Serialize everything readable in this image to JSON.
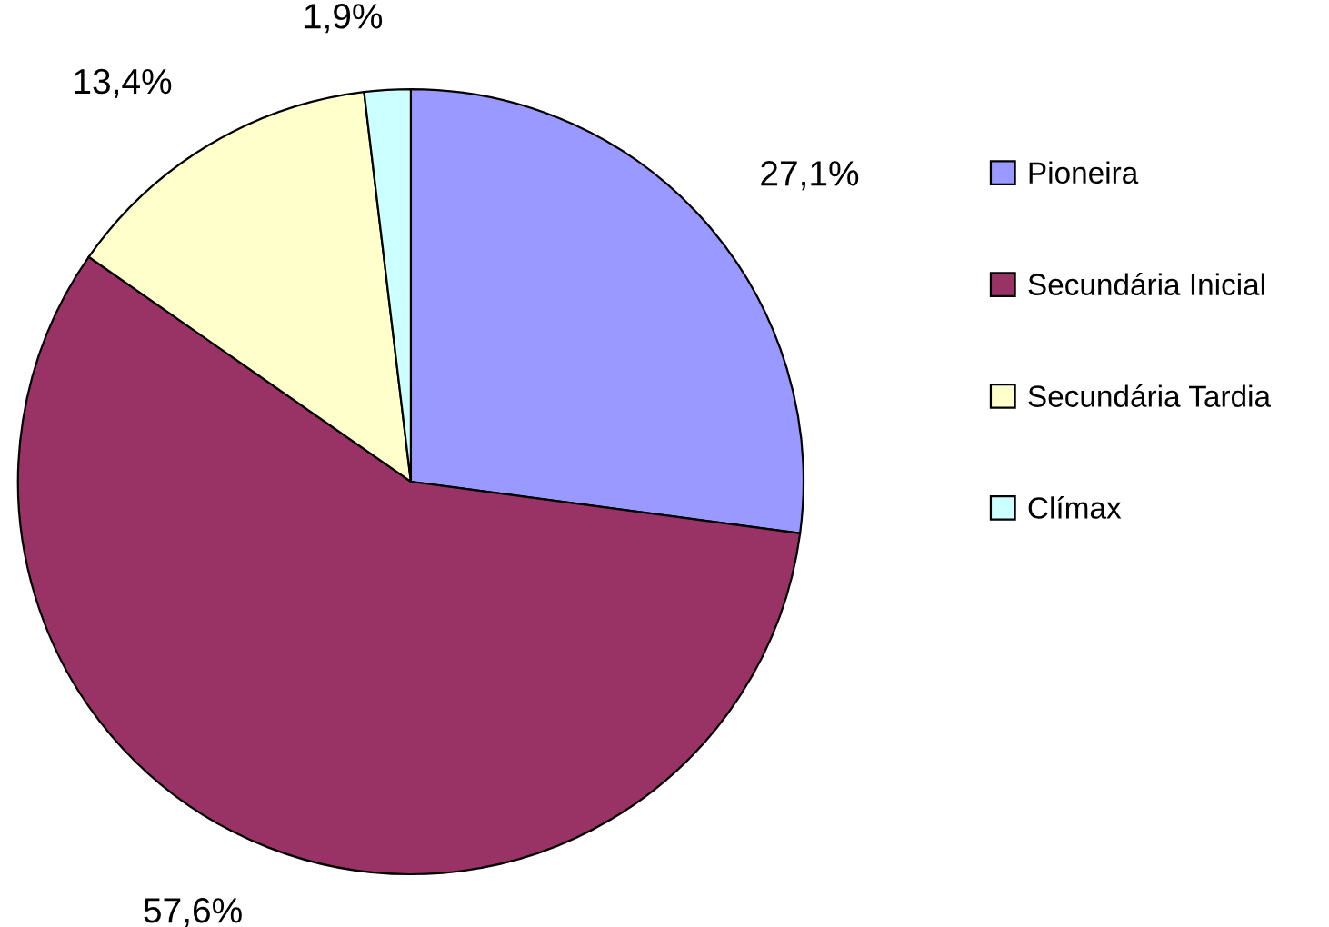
{
  "chart_data": {
    "type": "pie",
    "categories": [
      "Pioneira",
      "Secundária Inicial",
      "Secundária Tardia",
      "Clímax"
    ],
    "values": [
      27.1,
      57.6,
      13.4,
      1.9
    ],
    "colors": [
      "#9999ff",
      "#993366",
      "#ffffcc",
      "#ccffff"
    ],
    "value_labels": [
      "27,1%",
      "57,6%",
      "13,4%",
      "1,9%"
    ],
    "legend": "right"
  }
}
